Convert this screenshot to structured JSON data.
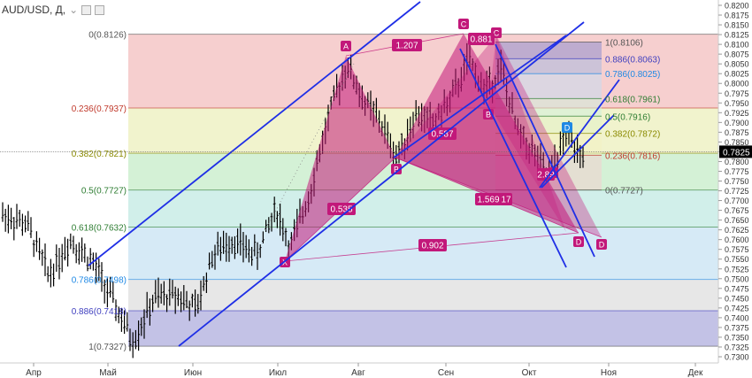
{
  "header": {
    "symbol": "AUD/USD, Д,",
    "caret": "⌄"
  },
  "colors": {
    "line_blue": "#1f2fe6",
    "harmonic_fill": "#c2187a",
    "label_bg": "#c2187a",
    "candle": "#000000",
    "price_badge": "#000000"
  },
  "chart_data": {
    "type": "bar",
    "title": "",
    "ylim": [
      0.73,
      0.822
    ],
    "y_ticks": [
      "0.8200",
      "0.8175",
      "0.8150",
      "0.8125",
      "0.8100",
      "0.8075",
      "0.8050",
      "0.8025",
      "0.8000",
      "0.7975",
      "0.7950",
      "0.7925",
      "0.7900",
      "0.7875",
      "0.7850",
      "0.7825",
      "0.7800",
      "0.7775",
      "0.7750",
      "0.7725",
      "0.7700",
      "0.7675",
      "0.7650",
      "0.7625",
      "0.7600",
      "0.7575",
      "0.7550",
      "0.7525",
      "0.7500",
      "0.7475",
      "0.7450",
      "0.7425",
      "0.7400",
      "0.7375",
      "0.7350",
      "0.7325",
      "0.7300"
    ],
    "x_ticks": [
      "Апр",
      "Май",
      "Июн",
      "Июл",
      "Авг",
      "Сен",
      "Окт",
      "Ноя",
      "Дек"
    ],
    "current_price": "0.7825",
    "fib_left": [
      {
        "label": "0(0.8126)",
        "value": 0.8126,
        "color": "#555555"
      },
      {
        "label": "0.236(0.7937)",
        "value": 0.7937,
        "color": "#c0392b"
      },
      {
        "label": "0.382(0.7821)",
        "value": 0.7821,
        "color": "#8a8a00"
      },
      {
        "label": "0.5(0.7727)",
        "value": 0.7727,
        "color": "#2e7d32"
      },
      {
        "label": "0.618(0.7632)",
        "value": 0.7632,
        "color": "#2e7d32"
      },
      {
        "label": "0.786(0.7498)",
        "value": 0.7498,
        "color": "#1e88e5"
      },
      {
        "label": "0.886(0.7418)",
        "value": 0.7418,
        "color": "#3f3fbf"
      },
      {
        "label": "1(0.7327)",
        "value": 0.7327,
        "color": "#555555"
      }
    ],
    "fib_right": [
      {
        "label": "1(0.8106)",
        "value": 0.8106,
        "color": "#555555"
      },
      {
        "label": "0.886(0.8063)",
        "value": 0.8063,
        "color": "#3f3fbf"
      },
      {
        "label": "0.786(0.8025)",
        "value": 0.8025,
        "color": "#1e88e5"
      },
      {
        "label": "0.618(0.7961)",
        "value": 0.7961,
        "color": "#2e7d32"
      },
      {
        "label": "0.5(0.7916)",
        "value": 0.7916,
        "color": "#2e7d32"
      },
      {
        "label": "0.382(0.7872)",
        "value": 0.7872,
        "color": "#8a8a00"
      },
      {
        "label": "0.236(0.7816)",
        "value": 0.7816,
        "color": "#c0392b"
      },
      {
        "label": "0(0.7727)",
        "value": 0.7727,
        "color": "#555555"
      }
    ],
    "pattern_points": [
      {
        "label": "X",
        "value": 0.7568
      },
      {
        "label": "A",
        "value": 0.8068
      },
      {
        "label": "B",
        "value": 0.78
      },
      {
        "label": "C",
        "value": 0.8126
      },
      {
        "label": "D",
        "value": 0.7605
      }
    ],
    "ratios": [
      "1.207",
      "0.881",
      "0.587",
      "0.535",
      "1.569",
      "17",
      "0.902",
      "2.89"
    ],
    "small_points": [
      "C",
      "B",
      "D",
      "D",
      "B"
    ]
  }
}
